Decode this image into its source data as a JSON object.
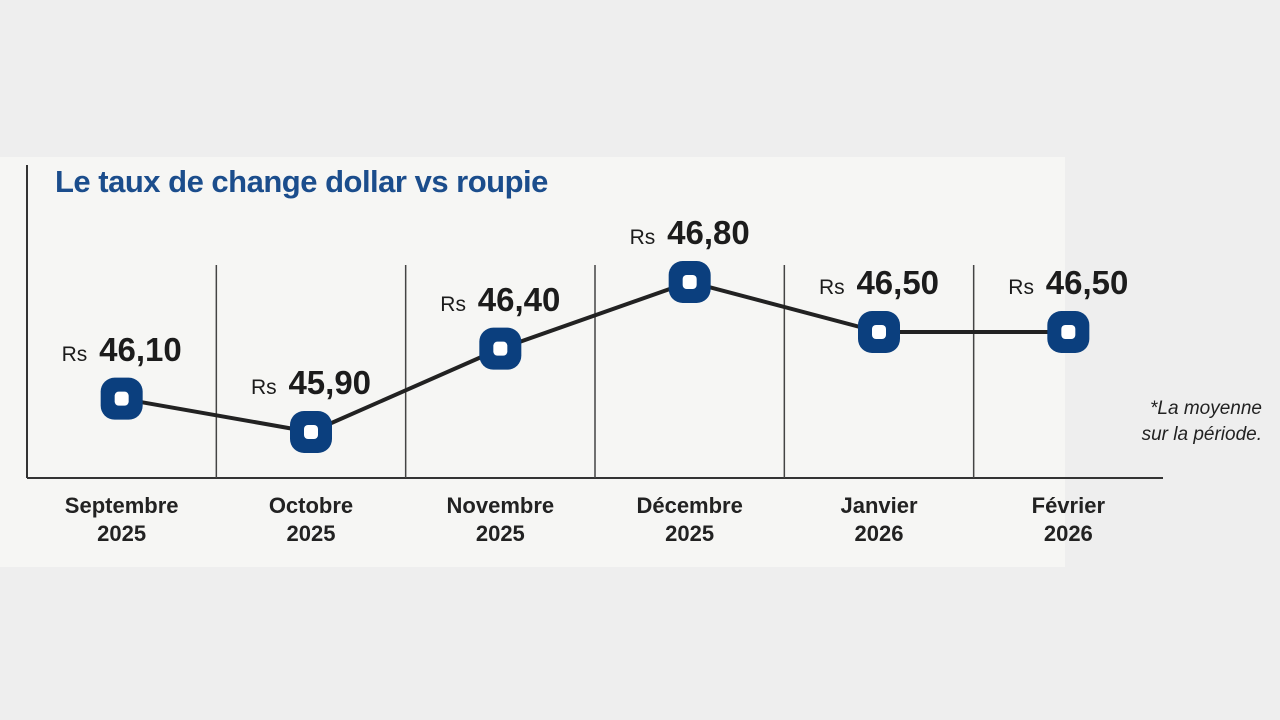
{
  "chart_data": {
    "type": "line",
    "title": "Le taux de change dollar vs roupie",
    "categories": [
      "Septembre 2025",
      "Octobre 2025",
      "Novembre 2025",
      "Décembre 2025",
      "Janvier 2026",
      "Février 2026"
    ],
    "values": [
      46.1,
      45.9,
      46.4,
      46.8,
      46.5,
      46.5
    ],
    "value_labels": [
      "Rs 46,10",
      "Rs 45,90",
      "Rs 46,40",
      "Rs 46,80",
      "Rs 46,50",
      "Rs 46,50"
    ],
    "color": "#0b3f7e",
    "annotation": [
      "*La moyenne",
      "sur la période."
    ]
  }
}
